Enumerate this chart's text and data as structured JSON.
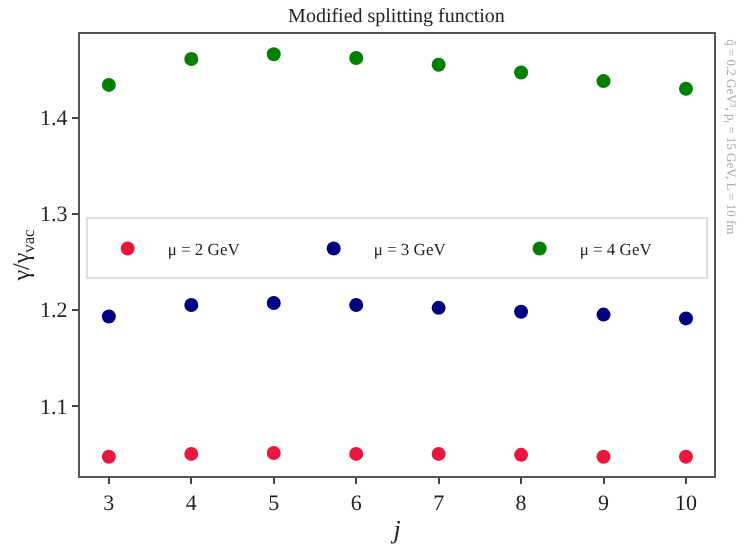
{
  "chart_data": {
    "type": "scatter",
    "title": "Modified splitting function",
    "xlabel": "j",
    "ylabel": "γ/γ$_{vac}$",
    "annotations": [
      "q̂ = 0.2 GeV³, p$_{t}$ = 15 GeV, L = 10 fm"
    ],
    "x": [
      3,
      4,
      5,
      6,
      7,
      8,
      9,
      10
    ],
    "series": [
      {
        "name": "μ = 2 GeV",
        "color": "#e8173f",
        "values": [
          1.047,
          1.05,
          1.051,
          1.05,
          1.05,
          1.049,
          1.047,
          1.047
        ]
      },
      {
        "name": "μ = 3 GeV",
        "color": "#000080",
        "values": [
          1.193,
          1.205,
          1.207,
          1.205,
          1.202,
          1.198,
          1.195,
          1.191
        ]
      },
      {
        "name": "μ = 4 GeV",
        "color": "#008000",
        "values": [
          1.434,
          1.461,
          1.466,
          1.462,
          1.455,
          1.447,
          1.438,
          1.43
        ]
      }
    ],
    "xlim": [
      2.65,
      10.34
    ],
    "ylim": [
      1.027,
      1.487
    ],
    "xticks": [
      3,
      4,
      5,
      6,
      7,
      8,
      9,
      10
    ],
    "yticks": [
      1.1,
      1.2,
      1.3,
      1.4
    ],
    "grid": false,
    "legend": "right",
    "marker": "circle"
  }
}
